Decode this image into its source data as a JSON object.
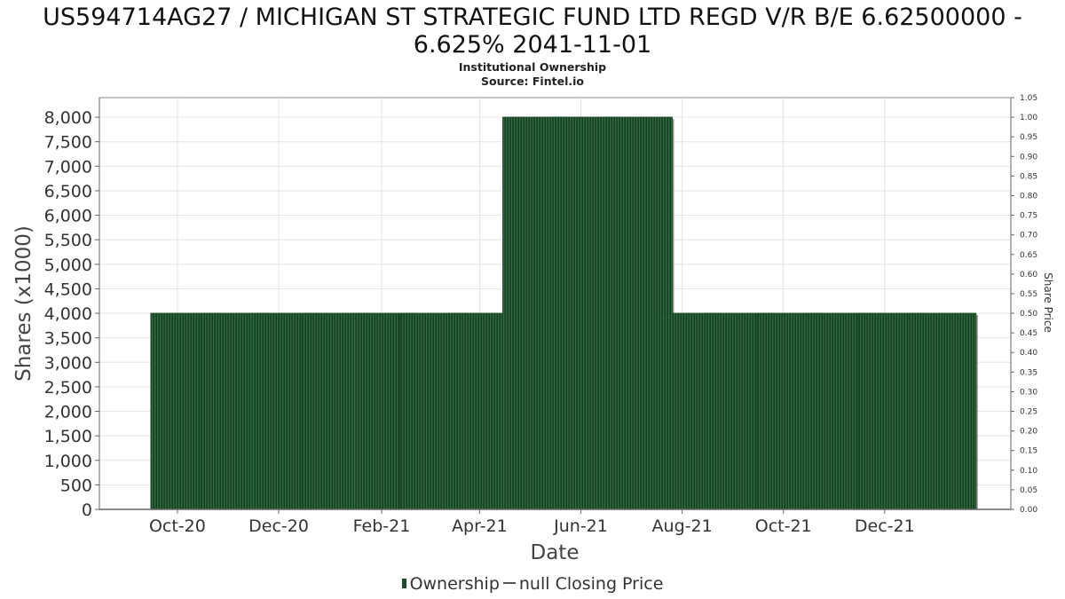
{
  "chart_data": {
    "type": "bar",
    "title": "US594714AG27 / MICHIGAN ST STRATEGIC FUND LTD REGD V/R B/E 6.62500000 - 6.625% 2041-11-01",
    "subtitle_line1": "Institutional Ownership",
    "subtitle_line2": "Source: Fintel.io",
    "xlabel": "Date",
    "ylabel": "Shares (x1000)",
    "ylabel_right": "Share Price",
    "ylim": [
      0,
      8400
    ],
    "ylim_right": [
      0,
      1.05
    ],
    "x_tick_labels": [
      "Oct-20",
      "Dec-20",
      "Feb-21",
      "Apr-21",
      "Jun-21",
      "Aug-21",
      "Oct-21",
      "Dec-21"
    ],
    "x_ticks": [
      "2020-10-01",
      "2020-12-01",
      "2021-02-01",
      "2021-04-01",
      "2021-06-01",
      "2021-08-01",
      "2021-10-01",
      "2021-12-01"
    ],
    "x_range": [
      "2020-08-15",
      "2022-02-15"
    ],
    "y_ticks": [
      0,
      500,
      1000,
      1500,
      2000,
      2500,
      3000,
      3500,
      4000,
      4500,
      5000,
      5500,
      6000,
      6500,
      7000,
      7500,
      8000
    ],
    "y_tick_labels": [
      "0",
      "500",
      "1,000",
      "1,500",
      "2,000",
      "2,500",
      "3,000",
      "3,500",
      "4,000",
      "4,500",
      "5,000",
      "5,500",
      "6,000",
      "6,500",
      "7,000",
      "7,500",
      "8,000"
    ],
    "y_right_tick_labels": [
      "0.00",
      "0.05",
      "0.10",
      "0.15",
      "0.20",
      "0.25",
      "0.30",
      "0.35",
      "0.40",
      "0.45",
      "0.50",
      "0.55",
      "0.60",
      "0.65",
      "0.70",
      "0.75",
      "0.80",
      "0.85",
      "0.90",
      "0.95",
      "1.00",
      "1.05"
    ],
    "series": [
      {
        "name": "Ownership",
        "bars": [
          {
            "start": "2020-09-15",
            "end": "2020-10-26",
            "value": 4000
          },
          {
            "start": "2020-10-15",
            "end": "2020-11-25",
            "value": 4000
          },
          {
            "start": "2020-11-15",
            "end": "2020-12-26",
            "value": 4000
          },
          {
            "start": "2020-12-15",
            "end": "2021-01-25",
            "value": 4000
          },
          {
            "start": "2021-01-15",
            "end": "2021-02-22",
            "value": 4000
          },
          {
            "start": "2021-02-12",
            "end": "2021-03-25",
            "value": 4000
          },
          {
            "start": "2021-03-15",
            "end": "2021-04-25",
            "value": 4000
          },
          {
            "start": "2021-04-15",
            "end": "2021-05-25",
            "value": 8000
          },
          {
            "start": "2021-05-15",
            "end": "2021-06-25",
            "value": 8000
          },
          {
            "start": "2021-06-15",
            "end": "2021-07-26",
            "value": 8000
          },
          {
            "start": "2021-07-15",
            "end": "2021-08-24",
            "value": 4000
          },
          {
            "start": "2021-08-15",
            "end": "2021-09-25",
            "value": 4000
          },
          {
            "start": "2021-09-15",
            "end": "2021-10-25",
            "value": 4000
          },
          {
            "start": "2021-10-15",
            "end": "2021-11-25",
            "value": 4000
          },
          {
            "start": "2021-11-15",
            "end": "2021-12-25",
            "value": 4000
          },
          {
            "start": "2021-12-15",
            "end": "2022-01-25",
            "value": 4000
          }
        ]
      },
      {
        "name": "null Closing Price",
        "values": []
      }
    ],
    "grid": true,
    "legend_position": "bottom-center"
  },
  "colors": {
    "bar_fill": "#1b4d2a",
    "bar_stripe": "#2f6b3f",
    "bar_shadow": "#8a8a8a",
    "grid": "#e3e3e3",
    "axis": "#888888",
    "legend_line": "#555555"
  },
  "legend": {
    "ownership_label": "Ownership",
    "price_label": "null Closing Price"
  }
}
